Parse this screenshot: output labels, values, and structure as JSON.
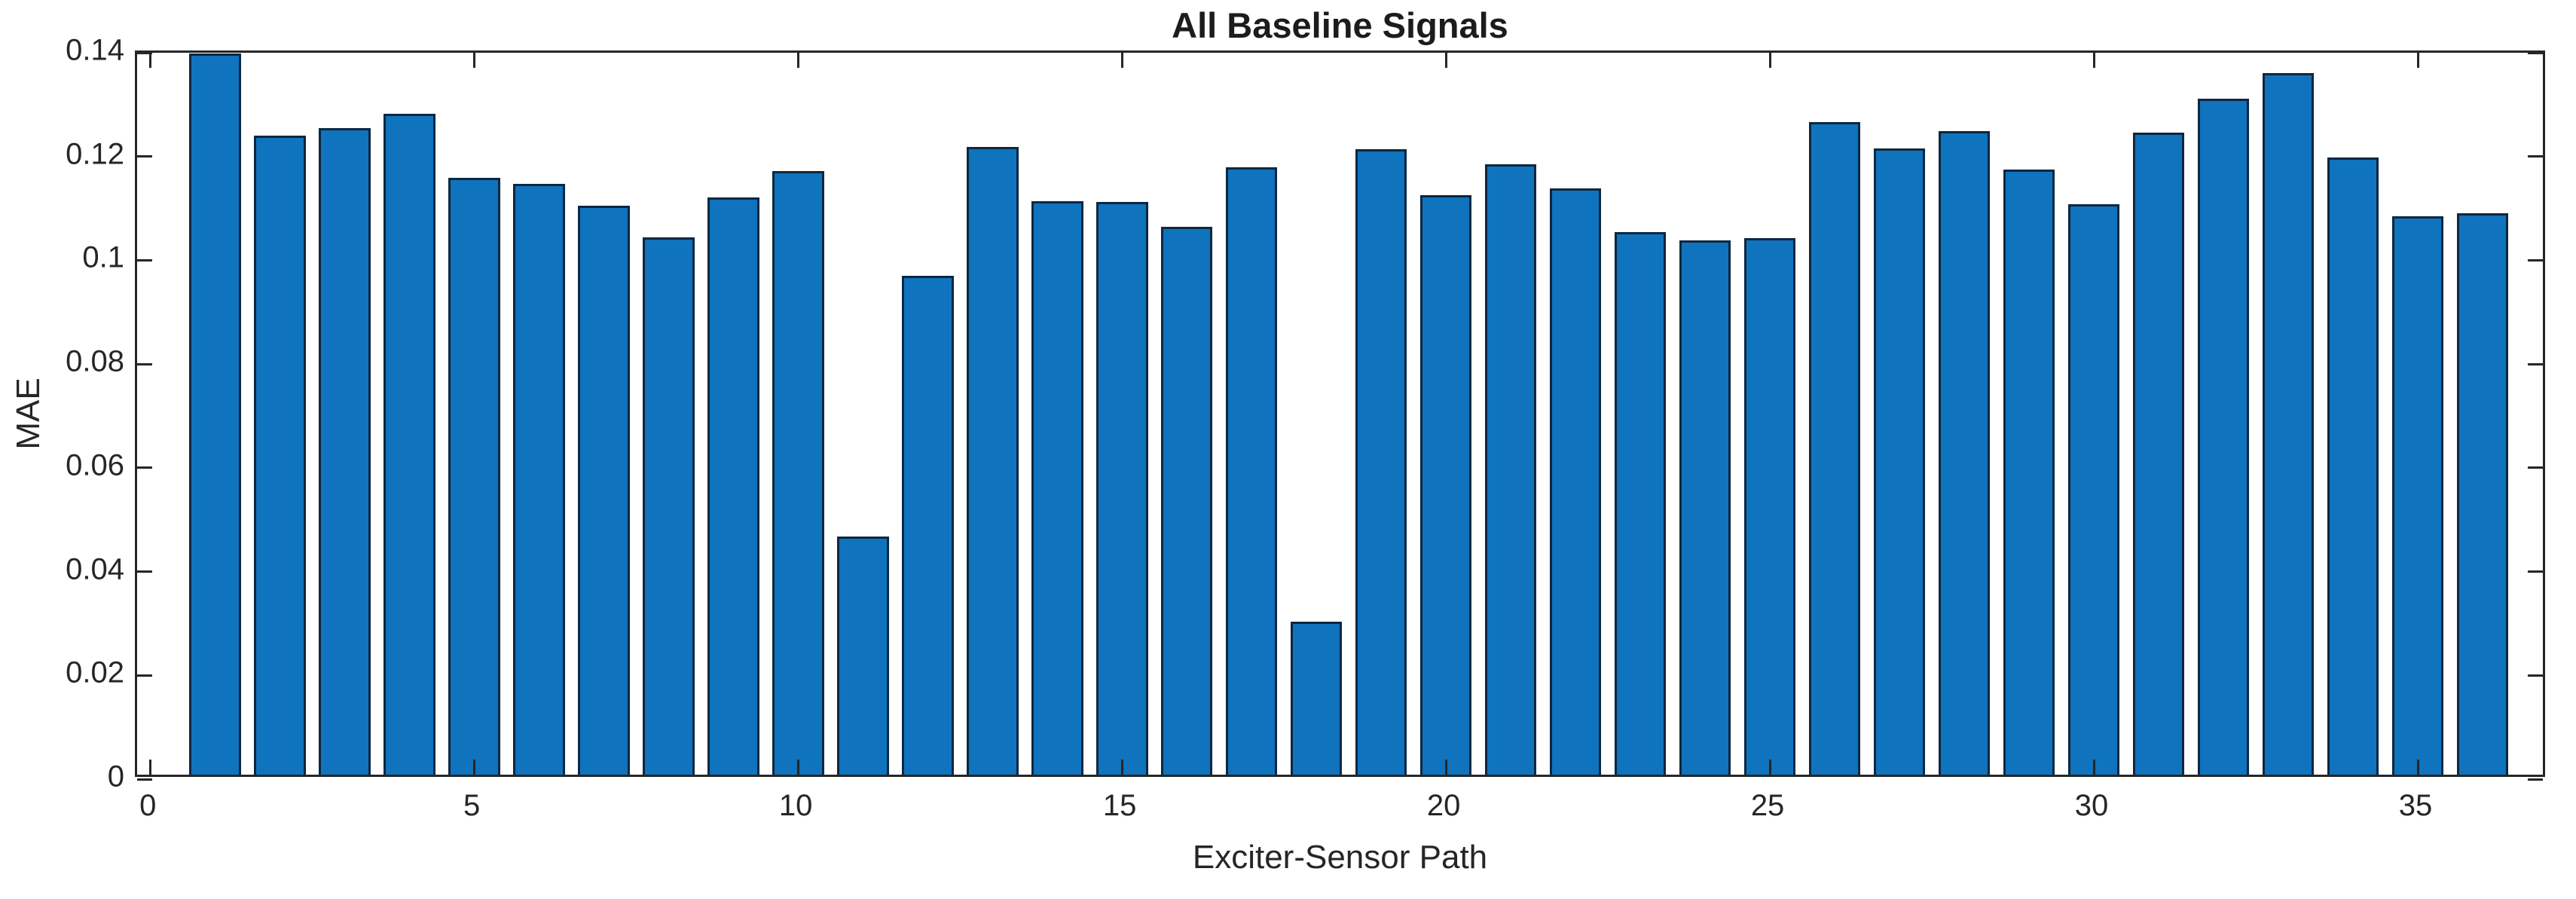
{
  "figure": {
    "title": "All Baseline Signals",
    "xlabel": "Exciter-Sensor Path",
    "ylabel": "MAE"
  },
  "chart_data": {
    "type": "bar",
    "title": "All Baseline Signals",
    "xlabel": "Exciter-Sensor Path",
    "ylabel": "MAE",
    "x": [
      1,
      2,
      3,
      4,
      5,
      6,
      7,
      8,
      9,
      10,
      11,
      12,
      13,
      14,
      15,
      16,
      17,
      18,
      19,
      20,
      21,
      22,
      23,
      24,
      25,
      26,
      27,
      28,
      29,
      30,
      31,
      32,
      33,
      34,
      35,
      36
    ],
    "values": [
      0.139,
      0.1231,
      0.1246,
      0.1273,
      0.115,
      0.1139,
      0.1096,
      0.1035,
      0.1113,
      0.1164,
      0.0459,
      0.0962,
      0.121,
      0.1105,
      0.1104,
      0.1056,
      0.1171,
      0.0295,
      0.1205,
      0.1117,
      0.1177,
      0.113,
      0.1046,
      0.103,
      0.1034,
      0.1257,
      0.1207,
      0.124,
      0.1166,
      0.1099,
      0.1237,
      0.1303,
      0.1352,
      0.119,
      0.1076,
      0.1082
    ],
    "bar_width": 0.8,
    "xlim": [
      -0.2,
      37.0
    ],
    "ylim": [
      0,
      0.14
    ],
    "xticks": [
      0,
      5,
      10,
      15,
      20,
      25,
      30,
      35
    ],
    "xtick_labels": [
      "0",
      "5",
      "10",
      "15",
      "20",
      "25",
      "30",
      "35"
    ],
    "yticks": [
      0,
      0.02,
      0.04,
      0.06,
      0.08,
      0.1,
      0.12,
      0.14
    ],
    "ytick_labels": [
      "0",
      "0.02",
      "0.04",
      "0.06",
      "0.08",
      "0.1",
      "0.12",
      "0.14"
    ],
    "grid": false,
    "legend": "none",
    "box": "on",
    "tick_direction": "in",
    "bar_color": "#0f73bd",
    "bar_edge_color": "#0d2740",
    "axis_color": "#262626",
    "text_color": "#262626",
    "background_color": "#ffffff"
  }
}
